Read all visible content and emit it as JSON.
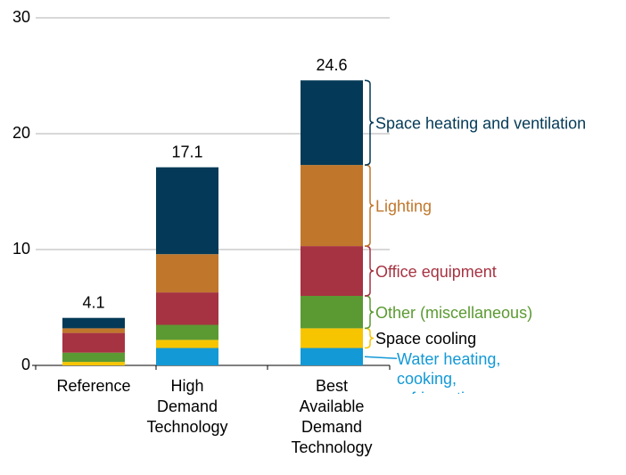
{
  "chart_data": {
    "type": "stacked_bar",
    "categories": [
      "Reference",
      "High Demand Technology",
      "Best Available Demand Technology"
    ],
    "series": [
      {
        "name": "Water heating, cooking, refrigeration",
        "color": "#1399d6",
        "label_color": "#1399d6",
        "values": [
          0,
          1.5,
          1.5
        ]
      },
      {
        "name": "Space cooling",
        "color": "#f7c500",
        "label_color": "#000000",
        "values": [
          0.3,
          0.7,
          1.7
        ]
      },
      {
        "name": "Other (miscellaneous)",
        "color": "#5b9a32",
        "label_color": "#5b9a32",
        "values": [
          0.8,
          1.3,
          2.8
        ]
      },
      {
        "name": "Office equipment",
        "color": "#a63342",
        "label_color": "#a63342",
        "values": [
          1.7,
          2.8,
          4.3
        ]
      },
      {
        "name": "Lighting",
        "color": "#c0772c",
        "label_color": "#c0772c",
        "values": [
          0.4,
          3.3,
          7.0
        ]
      },
      {
        "name": "Space heating and ventilation",
        "color": "#043a57",
        "label_color": "#043a57",
        "values": [
          0.9,
          7.5,
          7.3
        ]
      }
    ],
    "totals": [
      4.1,
      17.1,
      24.6
    ],
    "ylim": [
      0,
      30
    ],
    "yticks": [
      0,
      10,
      20,
      30
    ],
    "grid": true
  }
}
